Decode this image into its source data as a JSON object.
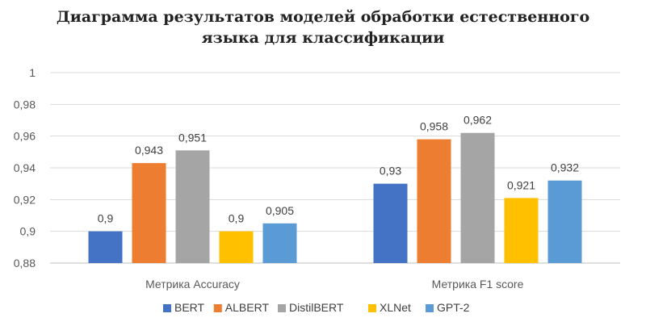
{
  "chart_data": {
    "type": "bar",
    "title_lines": [
      "Диаграмма результатов моделей обработки естественного",
      "языка для классификации"
    ],
    "xlabel": "",
    "ylabel": "",
    "categories": [
      "Метрика Accuracy",
      "Метрика F1 score"
    ],
    "series": [
      {
        "name": "BERT",
        "values": [
          0.9,
          0.93
        ],
        "labels": [
          "0,9",
          "0,93"
        ],
        "color": "#4472C4"
      },
      {
        "name": "ALBERT",
        "values": [
          0.943,
          0.958
        ],
        "labels": [
          "0,943",
          "0,958"
        ],
        "color": "#ED7D31"
      },
      {
        "name": "DistilBERT",
        "values": [
          0.951,
          0.962
        ],
        "labels": [
          "0,951",
          "0,962"
        ],
        "color": "#A5A5A5"
      },
      {
        "name": "XLNet",
        "values": [
          0.9,
          0.921
        ],
        "labels": [
          "0,9",
          "0,921"
        ],
        "color": "#FFC000"
      },
      {
        "name": "GPT-2",
        "values": [
          0.905,
          0.932
        ],
        "labels": [
          "0,905",
          "0,932"
        ],
        "color": "#5B9BD5"
      }
    ],
    "ylim": [
      0.88,
      1.0
    ],
    "yticks": [
      0.88,
      0.9,
      0.92,
      0.94,
      0.96,
      0.98,
      1.0
    ],
    "ytick_labels": [
      "0,88",
      "0,9",
      "0,92",
      "0,94",
      "0,96",
      "0,98",
      "1"
    ],
    "grid": true,
    "legend_position": "bottom"
  }
}
